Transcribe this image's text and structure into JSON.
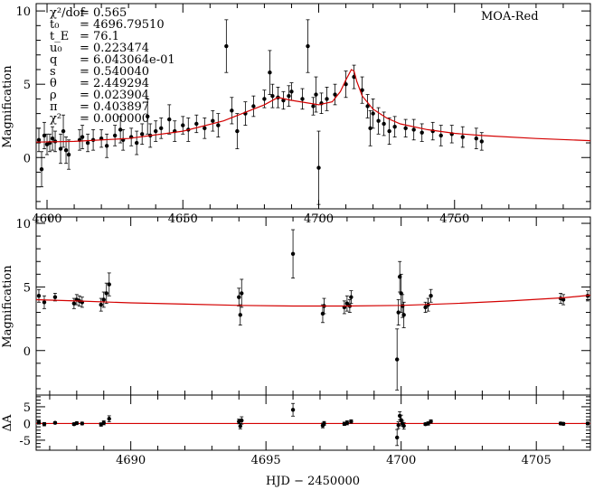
{
  "chart_data": [
    {
      "type": "scatter",
      "panel": "top",
      "title": "",
      "dataset_label": "MOA-Red",
      "xlabel": "",
      "ylabel": "Magnification",
      "xlim": [
        4596,
        4800
      ],
      "ylim": [
        -3.5,
        10.5
      ],
      "xticks": [
        4600,
        4650,
        4700,
        4750
      ],
      "yticks": [
        0,
        5,
        10
      ],
      "fit_parameters": [
        {
          "name": "χ²/dof",
          "value": "= 0.565"
        },
        {
          "name": "t₀",
          "value": "= 4696.79510"
        },
        {
          "name": "t_E",
          "value": "= 76.1"
        },
        {
          "name": "u₀",
          "value": "= 0.223474"
        },
        {
          "name": "q",
          "value": "= 6.043064e-01"
        },
        {
          "name": "s",
          "value": "= 0.540040"
        },
        {
          "name": "θ",
          "value": "= 2.449294"
        },
        {
          "name": "ρ",
          "value": "= 0.023904"
        },
        {
          "name": "π",
          "value": "= 0.403897"
        },
        {
          "name": "χ²",
          "value": "= 0.000000"
        }
      ],
      "model_curve": {
        "x": [
          4596,
          4610,
          4630,
          4650,
          4665,
          4680,
          4685,
          4690,
          4700,
          4705,
          4708,
          4710,
          4712,
          4713,
          4714,
          4716,
          4720,
          4725,
          4730,
          4740,
          4750,
          4760,
          4780,
          4800
        ],
        "y": [
          1.05,
          1.1,
          1.3,
          1.8,
          2.5,
          3.6,
          4.1,
          3.9,
          3.6,
          3.8,
          4.5,
          5.3,
          6.0,
          5.9,
          5.2,
          4.2,
          3.3,
          2.7,
          2.3,
          1.9,
          1.65,
          1.5,
          1.3,
          1.15
        ]
      },
      "points": [
        {
          "x": 4597,
          "y": 1.2,
          "e": 0.8
        },
        {
          "x": 4598,
          "y": -0.8,
          "e": 1.2
        },
        {
          "x": 4599,
          "y": 1.5,
          "e": 0.9
        },
        {
          "x": 4600,
          "y": 0.9,
          "e": 0.7
        },
        {
          "x": 4601,
          "y": 1.0,
          "e": 0.6
        },
        {
          "x": 4602,
          "y": 1.3,
          "e": 0.8
        },
        {
          "x": 4603,
          "y": 1.1,
          "e": 0.7
        },
        {
          "x": 4605,
          "y": 0.6,
          "e": 1.0
        },
        {
          "x": 4606,
          "y": 1.8,
          "e": 1.1
        },
        {
          "x": 4607,
          "y": 0.5,
          "e": 0.9
        },
        {
          "x": 4608,
          "y": 0.2,
          "e": 1.0
        },
        {
          "x": 4612,
          "y": 1.2,
          "e": 0.7
        },
        {
          "x": 4613,
          "y": 1.4,
          "e": 0.8
        },
        {
          "x": 4615,
          "y": 1.0,
          "e": 0.6
        },
        {
          "x": 4617,
          "y": 1.2,
          "e": 0.7
        },
        {
          "x": 4620,
          "y": 1.3,
          "e": 0.6
        },
        {
          "x": 4622,
          "y": 0.8,
          "e": 0.8
        },
        {
          "x": 4625,
          "y": 1.5,
          "e": 0.7
        },
        {
          "x": 4627,
          "y": 1.9,
          "e": 0.9
        },
        {
          "x": 4628,
          "y": 1.2,
          "e": 0.7
        },
        {
          "x": 4631,
          "y": 1.4,
          "e": 0.6
        },
        {
          "x": 4633,
          "y": 1.0,
          "e": 0.8
        },
        {
          "x": 4635,
          "y": 1.6,
          "e": 0.7
        },
        {
          "x": 4637,
          "y": 2.8,
          "e": 1.2
        },
        {
          "x": 4638,
          "y": 1.5,
          "e": 0.8
        },
        {
          "x": 4640,
          "y": 1.8,
          "e": 0.7
        },
        {
          "x": 4642,
          "y": 2.0,
          "e": 0.7
        },
        {
          "x": 4645,
          "y": 2.6,
          "e": 1.0
        },
        {
          "x": 4647,
          "y": 1.8,
          "e": 0.7
        },
        {
          "x": 4650,
          "y": 2.2,
          "e": 0.6
        },
        {
          "x": 4652,
          "y": 1.9,
          "e": 0.8
        },
        {
          "x": 4655,
          "y": 2.3,
          "e": 0.6
        },
        {
          "x": 4658,
          "y": 2.0,
          "e": 0.7
        },
        {
          "x": 4661,
          "y": 2.5,
          "e": 0.7
        },
        {
          "x": 4663,
          "y": 2.2,
          "e": 0.8
        },
        {
          "x": 4666,
          "y": 7.6,
          "e": 1.8
        },
        {
          "x": 4668,
          "y": 3.2,
          "e": 0.9
        },
        {
          "x": 4670,
          "y": 1.8,
          "e": 1.2
        },
        {
          "x": 4673,
          "y": 3.0,
          "e": 0.8
        },
        {
          "x": 4676,
          "y": 3.5,
          "e": 0.7
        },
        {
          "x": 4680,
          "y": 4.0,
          "e": 0.6
        },
        {
          "x": 4682,
          "y": 5.8,
          "e": 1.5
        },
        {
          "x": 4683,
          "y": 4.2,
          "e": 0.8
        },
        {
          "x": 4685,
          "y": 4.1,
          "e": 0.7
        },
        {
          "x": 4687,
          "y": 3.9,
          "e": 0.6
        },
        {
          "x": 4689,
          "y": 4.2,
          "e": 0.7
        },
        {
          "x": 4690,
          "y": 4.5,
          "e": 0.6
        },
        {
          "x": 4694,
          "y": 4.0,
          "e": 0.7
        },
        {
          "x": 4696,
          "y": 7.6,
          "e": 1.8
        },
        {
          "x": 4698,
          "y": 3.5,
          "e": 0.6
        },
        {
          "x": 4699,
          "y": 4.3,
          "e": 1.2
        },
        {
          "x": 4700,
          "y": -0.7,
          "e": 2.5
        },
        {
          "x": 4701,
          "y": 3.7,
          "e": 0.7
        },
        {
          "x": 4703,
          "y": 4.0,
          "e": 0.8
        },
        {
          "x": 4706,
          "y": 4.3,
          "e": 0.7
        },
        {
          "x": 4710,
          "y": 5.0,
          "e": 0.9
        },
        {
          "x": 4713,
          "y": 5.5,
          "e": 0.8
        },
        {
          "x": 4716,
          "y": 4.6,
          "e": 0.9
        },
        {
          "x": 4718,
          "y": 3.5,
          "e": 0.8
        },
        {
          "x": 4719,
          "y": 2.0,
          "e": 1.2
        },
        {
          "x": 4720,
          "y": 3.0,
          "e": 1.0
        },
        {
          "x": 4722,
          "y": 2.5,
          "e": 0.9
        },
        {
          "x": 4724,
          "y": 2.3,
          "e": 0.8
        },
        {
          "x": 4726,
          "y": 1.8,
          "e": 0.9
        },
        {
          "x": 4728,
          "y": 2.1,
          "e": 0.7
        },
        {
          "x": 4732,
          "y": 2.0,
          "e": 0.6
        },
        {
          "x": 4735,
          "y": 1.9,
          "e": 0.7
        },
        {
          "x": 4738,
          "y": 1.7,
          "e": 0.6
        },
        {
          "x": 4742,
          "y": 1.8,
          "e": 0.6
        },
        {
          "x": 4745,
          "y": 1.5,
          "e": 0.7
        },
        {
          "x": 4749,
          "y": 1.6,
          "e": 0.6
        },
        {
          "x": 4753,
          "y": 1.4,
          "e": 0.7
        },
        {
          "x": 4758,
          "y": 1.3,
          "e": 0.7
        },
        {
          "x": 4760,
          "y": 1.1,
          "e": 0.6
        }
      ]
    },
    {
      "type": "scatter",
      "panel": "middle",
      "title": "",
      "xlabel": "",
      "ylabel": "Magnification",
      "xlim": [
        4686.5,
        4707
      ],
      "ylim": [
        -3.5,
        10.5
      ],
      "yticks": [
        0,
        5,
        10
      ],
      "model_curve": {
        "x": [
          4686.5,
          4688,
          4690,
          4692,
          4694,
          4696,
          4698,
          4700,
          4702,
          4704,
          4706,
          4707
        ],
        "y": [
          4.0,
          3.9,
          3.75,
          3.65,
          3.55,
          3.5,
          3.5,
          3.55,
          3.7,
          3.9,
          4.15,
          4.35
        ]
      },
      "points": [
        {
          "x": 4686.6,
          "y": 4.3,
          "e": 0.5
        },
        {
          "x": 4686.8,
          "y": 3.8,
          "e": 0.5
        },
        {
          "x": 4687.2,
          "y": 4.2,
          "e": 0.3
        },
        {
          "x": 4687.9,
          "y": 3.7,
          "e": 0.4
        },
        {
          "x": 4688.0,
          "y": 4.0,
          "e": 0.4
        },
        {
          "x": 4688.1,
          "y": 3.9,
          "e": 0.4
        },
        {
          "x": 4688.2,
          "y": 3.8,
          "e": 0.4
        },
        {
          "x": 4688.9,
          "y": 3.6,
          "e": 0.5
        },
        {
          "x": 4689.0,
          "y": 4.0,
          "e": 0.6
        },
        {
          "x": 4689.1,
          "y": 4.5,
          "e": 0.8
        },
        {
          "x": 4689.2,
          "y": 5.2,
          "e": 0.9
        },
        {
          "x": 4694.0,
          "y": 4.2,
          "e": 0.7
        },
        {
          "x": 4694.05,
          "y": 2.8,
          "e": 0.8
        },
        {
          "x": 4694.1,
          "y": 4.5,
          "e": 1.1
        },
        {
          "x": 4696.0,
          "y": 7.6,
          "e": 1.9
        },
        {
          "x": 4697.1,
          "y": 2.9,
          "e": 0.7
        },
        {
          "x": 4697.15,
          "y": 3.5,
          "e": 0.6
        },
        {
          "x": 4697.9,
          "y": 3.4,
          "e": 0.5
        },
        {
          "x": 4698.0,
          "y": 3.7,
          "e": 0.6
        },
        {
          "x": 4698.1,
          "y": 3.5,
          "e": 0.5
        },
        {
          "x": 4698.15,
          "y": 4.2,
          "e": 0.5
        },
        {
          "x": 4699.85,
          "y": -0.7,
          "e": 2.4
        },
        {
          "x": 4699.9,
          "y": 3.0,
          "e": 1.0
        },
        {
          "x": 4699.95,
          "y": 5.8,
          "e": 1.2
        },
        {
          "x": 4700.0,
          "y": 4.5,
          "e": 1.5
        },
        {
          "x": 4700.05,
          "y": 3.5,
          "e": 0.9
        },
        {
          "x": 4700.1,
          "y": 2.8,
          "e": 1.0
        },
        {
          "x": 4700.9,
          "y": 3.4,
          "e": 0.4
        },
        {
          "x": 4701.0,
          "y": 3.6,
          "e": 0.5
        },
        {
          "x": 4701.1,
          "y": 4.3,
          "e": 0.5
        },
        {
          "x": 4705.9,
          "y": 4.1,
          "e": 0.4
        },
        {
          "x": 4706.0,
          "y": 4.0,
          "e": 0.4
        },
        {
          "x": 4706.9,
          "y": 4.3,
          "e": 0.4
        }
      ]
    },
    {
      "type": "scatter",
      "panel": "residual",
      "xlabel": "HJD − 2450000",
      "ylabel": "ΔA",
      "xlim": [
        4686.5,
        4707
      ],
      "ylim": [
        -8,
        8.5
      ],
      "xticks": [
        4690,
        4695,
        4700,
        4705
      ],
      "yticks": [
        -5,
        0,
        5
      ],
      "points": [
        {
          "x": 4686.6,
          "y": 0.3,
          "e": 0.5
        },
        {
          "x": 4686.8,
          "y": -0.2,
          "e": 0.5
        },
        {
          "x": 4687.2,
          "y": 0.2,
          "e": 0.3
        },
        {
          "x": 4687.9,
          "y": -0.2,
          "e": 0.4
        },
        {
          "x": 4688.0,
          "y": 0.1,
          "e": 0.4
        },
        {
          "x": 4688.2,
          "y": 0.0,
          "e": 0.4
        },
        {
          "x": 4688.9,
          "y": -0.3,
          "e": 0.5
        },
        {
          "x": 4689.0,
          "y": 0.2,
          "e": 0.6
        },
        {
          "x": 4689.2,
          "y": 1.4,
          "e": 0.9
        },
        {
          "x": 4694.0,
          "y": 0.6,
          "e": 0.7
        },
        {
          "x": 4694.05,
          "y": -0.8,
          "e": 0.8
        },
        {
          "x": 4694.1,
          "y": 0.9,
          "e": 1.1
        },
        {
          "x": 4696.0,
          "y": 4.1,
          "e": 1.9
        },
        {
          "x": 4697.1,
          "y": -0.6,
          "e": 0.7
        },
        {
          "x": 4697.15,
          "y": 0.0,
          "e": 0.6
        },
        {
          "x": 4697.9,
          "y": -0.1,
          "e": 0.5
        },
        {
          "x": 4698.0,
          "y": 0.2,
          "e": 0.6
        },
        {
          "x": 4698.15,
          "y": 0.6,
          "e": 0.5
        },
        {
          "x": 4699.85,
          "y": -4.2,
          "e": 2.4
        },
        {
          "x": 4699.9,
          "y": -0.5,
          "e": 1.0
        },
        {
          "x": 4699.95,
          "y": 2.3,
          "e": 1.2
        },
        {
          "x": 4700.0,
          "y": 1.0,
          "e": 1.5
        },
        {
          "x": 4700.05,
          "y": 0.0,
          "e": 0.9
        },
        {
          "x": 4700.1,
          "y": -0.7,
          "e": 1.0
        },
        {
          "x": 4700.9,
          "y": -0.2,
          "e": 0.4
        },
        {
          "x": 4701.0,
          "y": 0.0,
          "e": 0.5
        },
        {
          "x": 4701.1,
          "y": 0.6,
          "e": 0.5
        },
        {
          "x": 4705.9,
          "y": 0.0,
          "e": 0.4
        },
        {
          "x": 4706.0,
          "y": -0.1,
          "e": 0.4
        },
        {
          "x": 4706.9,
          "y": 0.0,
          "e": 0.4
        }
      ]
    }
  ]
}
